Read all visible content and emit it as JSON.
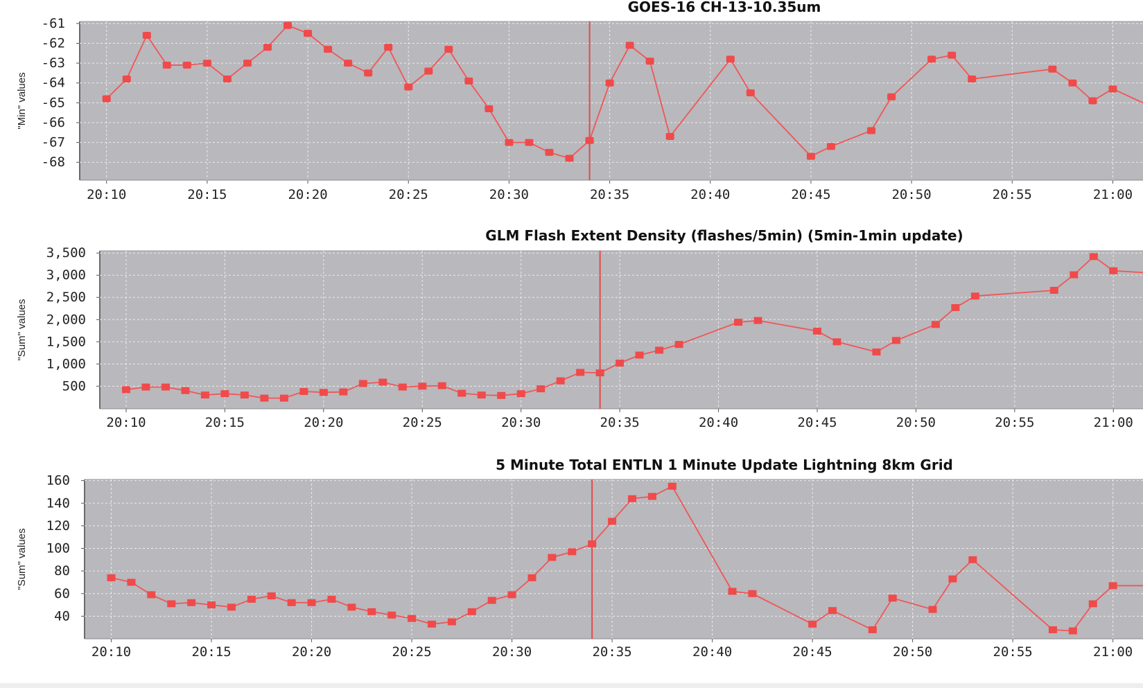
{
  "colors": {
    "plot_bg": "#b9b8bd",
    "grid": "#ececec",
    "series": "#f05656",
    "marker": "#f04a4a",
    "cursor": "#e04a4a",
    "axis_text": "#222222",
    "title_text": "#111111"
  },
  "chart_data": [
    {
      "type": "line",
      "title": "GOES-16 CH-13-10.35um",
      "ylabel": "\"Min\" values",
      "xlabel": "",
      "x_ticks": [
        "20:10",
        "20:15",
        "20:20",
        "20:25",
        "20:30",
        "20:35",
        "20:40",
        "20:45",
        "20:50",
        "20:55",
        "21:00"
      ],
      "y_ticks": [
        "-61",
        "-62",
        "-63",
        "-64",
        "-65",
        "-66",
        "-67",
        "-68"
      ],
      "ylim": [
        -68.9,
        -60.9
      ],
      "xlim": [
        "20:08:40",
        "21:01:30"
      ],
      "marker": "circle",
      "cursor_x": "20:34",
      "grid": true,
      "series": [
        {
          "points": [
            [
              "20:10",
              -64.8
            ],
            [
              "20:11",
              -63.8
            ],
            [
              "20:12",
              -61.6
            ],
            [
              "20:13",
              -63.1
            ],
            [
              "20:14",
              -63.1
            ],
            [
              "20:15",
              -63.0
            ],
            [
              "20:16",
              -63.8
            ],
            [
              "20:17",
              -63.0
            ],
            [
              "20:18",
              -62.2
            ],
            [
              "20:19",
              -61.1
            ],
            [
              "20:20",
              -61.5
            ],
            [
              "20:21",
              -62.3
            ],
            [
              "20:22",
              -63.0
            ],
            [
              "20:23",
              -63.5
            ],
            [
              "20:24",
              -62.2
            ],
            [
              "20:25",
              -64.2
            ],
            [
              "20:26",
              -63.4
            ],
            [
              "20:27",
              -62.3
            ],
            [
              "20:28",
              -63.9
            ],
            [
              "20:29",
              -65.3
            ],
            [
              "20:30",
              -67.0
            ],
            [
              "20:31",
              -67.0
            ],
            [
              "20:32",
              -67.5
            ],
            [
              "20:33",
              -67.8
            ],
            [
              "20:34",
              -66.9
            ],
            [
              "20:35",
              -64.0
            ],
            [
              "20:36",
              -62.1
            ],
            [
              "20:37",
              -62.9
            ],
            [
              "20:38",
              -66.7
            ],
            [
              "20:41",
              -62.8
            ],
            [
              "20:42",
              -64.5
            ],
            [
              "20:45",
              -67.7
            ],
            [
              "20:46",
              -67.2
            ],
            [
              "20:48",
              -66.4
            ],
            [
              "20:49",
              -64.7
            ],
            [
              "20:51",
              -62.8
            ],
            [
              "20:52",
              -62.6
            ],
            [
              "20:53",
              -63.8
            ],
            [
              "20:57",
              -63.3
            ],
            [
              "20:58",
              -64.0
            ],
            [
              "20:59",
              -64.9
            ],
            [
              "21:00",
              -64.3
            ],
            [
              "21:01:30",
              -65.0
            ]
          ]
        }
      ]
    },
    {
      "type": "line",
      "title": "GLM Flash Extent Density (flashes/5min) (5min-1min update)",
      "ylabel": "\"Sum\" values",
      "xlabel": "",
      "x_ticks": [
        "20:10",
        "20:15",
        "20:20",
        "20:25",
        "20:30",
        "20:35",
        "20:40",
        "20:45",
        "20:50",
        "20:55",
        "21:00"
      ],
      "y_ticks": [
        "500",
        "1,000",
        "1,500",
        "2,000",
        "2,500",
        "3,000",
        "3,500"
      ],
      "ylim": [
        -10,
        3550
      ],
      "xlim": [
        "20:08:40",
        "21:01:30"
      ],
      "marker": "square",
      "cursor_x": "20:34",
      "grid": true,
      "series": [
        {
          "points": [
            [
              "20:10",
              420
            ],
            [
              "20:11",
              480
            ],
            [
              "20:12",
              480
            ],
            [
              "20:13",
              400
            ],
            [
              "20:14",
              300
            ],
            [
              "20:15",
              330
            ],
            [
              "20:16",
              300
            ],
            [
              "20:17",
              230
            ],
            [
              "20:18",
              230
            ],
            [
              "20:19",
              380
            ],
            [
              "20:20",
              360
            ],
            [
              "20:21",
              370
            ],
            [
              "20:22",
              560
            ],
            [
              "20:23",
              590
            ],
            [
              "20:24",
              480
            ],
            [
              "20:25",
              500
            ],
            [
              "20:26",
              510
            ],
            [
              "20:27",
              340
            ],
            [
              "20:28",
              300
            ],
            [
              "20:29",
              290
            ],
            [
              "20:30",
              330
            ],
            [
              "20:31",
              440
            ],
            [
              "20:32",
              620
            ],
            [
              "20:33",
              810
            ],
            [
              "20:34",
              800
            ],
            [
              "20:35",
              1020
            ],
            [
              "20:36",
              1200
            ],
            [
              "20:37",
              1310
            ],
            [
              "20:38",
              1440
            ],
            [
              "20:41",
              1940
            ],
            [
              "20:42",
              1980
            ],
            [
              "20:45",
              1740
            ],
            [
              "20:46",
              1500
            ],
            [
              "20:48",
              1270
            ],
            [
              "20:49",
              1530
            ],
            [
              "20:51",
              1890
            ],
            [
              "20:52",
              2270
            ],
            [
              "20:53",
              2530
            ],
            [
              "20:57",
              2660
            ],
            [
              "20:58",
              3010
            ],
            [
              "20:59",
              3420
            ],
            [
              "21:00",
              3100
            ],
            [
              "21:01:30",
              3060
            ]
          ]
        }
      ]
    },
    {
      "type": "line",
      "title": "5 Minute Total ENTLN 1 Minute Update Lightning 8km Grid",
      "ylabel": "\"Sum\" values",
      "xlabel": "",
      "x_ticks": [
        "20:10",
        "20:15",
        "20:20",
        "20:25",
        "20:30",
        "20:35",
        "20:40",
        "20:45",
        "20:50",
        "20:55",
        "21:00"
      ],
      "y_ticks": [
        "40",
        "60",
        "80",
        "100",
        "120",
        "140",
        "160"
      ],
      "ylim": [
        20,
        161
      ],
      "xlim": [
        "20:08:40",
        "21:01:30"
      ],
      "marker": "square",
      "cursor_x": "20:34",
      "grid": true,
      "series": [
        {
          "points": [
            [
              "20:10",
              74
            ],
            [
              "20:11",
              70
            ],
            [
              "20:12",
              59
            ],
            [
              "20:13",
              51
            ],
            [
              "20:14",
              52
            ],
            [
              "20:15",
              50
            ],
            [
              "20:16",
              48
            ],
            [
              "20:17",
              55
            ],
            [
              "20:18",
              58
            ],
            [
              "20:19",
              52
            ],
            [
              "20:20",
              52
            ],
            [
              "20:21",
              55
            ],
            [
              "20:22",
              48
            ],
            [
              "20:23",
              44
            ],
            [
              "20:24",
              41
            ],
            [
              "20:25",
              38
            ],
            [
              "20:26",
              33
            ],
            [
              "20:27",
              35
            ],
            [
              "20:28",
              44
            ],
            [
              "20:29",
              54
            ],
            [
              "20:30",
              59
            ],
            [
              "20:31",
              74
            ],
            [
              "20:32",
              92
            ],
            [
              "20:33",
              97
            ],
            [
              "20:34",
              104
            ],
            [
              "20:35",
              124
            ],
            [
              "20:36",
              144
            ],
            [
              "20:37",
              146
            ],
            [
              "20:38",
              155
            ],
            [
              "20:41",
              62
            ],
            [
              "20:42",
              60
            ],
            [
              "20:45",
              33
            ],
            [
              "20:46",
              45
            ],
            [
              "20:48",
              28
            ],
            [
              "20:49",
              56
            ],
            [
              "20:51",
              46
            ],
            [
              "20:52",
              73
            ],
            [
              "20:53",
              90
            ],
            [
              "20:57",
              28
            ],
            [
              "20:58",
              27
            ],
            [
              "20:59",
              51
            ],
            [
              "21:00",
              67
            ],
            [
              "21:01:30",
              67
            ]
          ]
        }
      ]
    }
  ]
}
